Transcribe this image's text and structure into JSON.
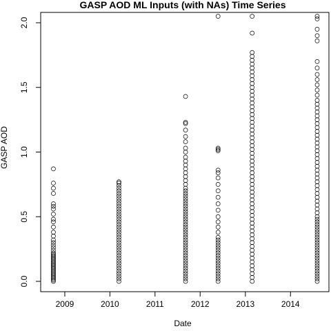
{
  "chart_data": {
    "type": "scatter",
    "title": "GASP AOD ML Inputs (with NAs) Time Series",
    "xlabel": "Date",
    "ylabel": "GASP AOD",
    "xlim": [
      "2008-06-20",
      "2014-11-08"
    ],
    "ylim": [
      -0.08,
      2.08
    ],
    "x_ticks": [
      "2009",
      "2010",
      "2011",
      "2012",
      "2013",
      "2014"
    ],
    "x_tick_dates": [
      "2009-01-01",
      "2010-01-01",
      "2011-01-01",
      "2012-01-01",
      "2013-01-01",
      "2014-01-01"
    ],
    "y_ticks": [
      "0.0",
      "0.5",
      "1.0",
      "1.5",
      "2.0"
    ],
    "y_tick_values": [
      0.0,
      0.5,
      1.0,
      1.5,
      2.0
    ],
    "grid": false,
    "marker": "open-circle",
    "series": [
      {
        "x": "2008-10-01",
        "values": [
          0.0,
          0.01,
          0.02,
          0.03,
          0.04,
          0.05,
          0.06,
          0.07,
          0.08,
          0.09,
          0.1,
          0.11,
          0.12,
          0.13,
          0.14,
          0.15,
          0.16,
          0.17,
          0.18,
          0.19,
          0.2,
          0.21,
          0.22,
          0.24,
          0.26,
          0.28,
          0.3,
          0.32,
          0.35,
          0.38,
          0.42,
          0.46,
          0.48,
          0.52,
          0.56,
          0.58,
          0.6,
          0.68,
          0.72,
          0.76,
          0.87
        ]
      },
      {
        "x": "2010-03-15",
        "values": [
          0.0,
          0.02,
          0.04,
          0.06,
          0.08,
          0.1,
          0.12,
          0.14,
          0.16,
          0.18,
          0.2,
          0.22,
          0.24,
          0.26,
          0.28,
          0.3,
          0.32,
          0.34,
          0.36,
          0.38,
          0.4,
          0.42,
          0.44,
          0.46,
          0.48,
          0.5,
          0.52,
          0.54,
          0.56,
          0.58,
          0.6,
          0.62,
          0.64,
          0.66,
          0.68,
          0.7,
          0.72,
          0.74,
          0.76,
          0.77
        ]
      },
      {
        "x": "2011-09-05",
        "values": [
          0.0,
          0.02,
          0.04,
          0.06,
          0.08,
          0.1,
          0.12,
          0.14,
          0.16,
          0.18,
          0.2,
          0.22,
          0.24,
          0.26,
          0.28,
          0.3,
          0.32,
          0.34,
          0.36,
          0.38,
          0.4,
          0.42,
          0.44,
          0.46,
          0.48,
          0.5,
          0.52,
          0.54,
          0.56,
          0.58,
          0.6,
          0.62,
          0.64,
          0.66,
          0.68,
          0.7,
          0.72,
          0.75,
          0.78,
          0.81,
          0.84,
          0.87,
          0.9,
          0.93,
          0.96,
          1.0,
          1.03,
          1.08,
          1.12,
          1.17,
          1.22,
          1.23,
          1.43
        ]
      },
      {
        "x": "2012-05-25",
        "values": [
          0.0,
          0.02,
          0.04,
          0.06,
          0.08,
          0.1,
          0.12,
          0.14,
          0.16,
          0.18,
          0.2,
          0.22,
          0.24,
          0.26,
          0.28,
          0.3,
          0.32,
          0.34,
          0.38,
          0.42,
          0.46,
          0.5,
          0.55,
          0.6,
          0.65,
          0.7,
          0.75,
          0.8,
          0.84,
          0.86,
          1.01,
          1.02,
          1.03,
          2.05
        ]
      },
      {
        "x": "2013-02-25",
        "values": [
          0.0,
          0.03,
          0.06,
          0.09,
          0.12,
          0.15,
          0.18,
          0.21,
          0.24,
          0.27,
          0.3,
          0.33,
          0.36,
          0.39,
          0.42,
          0.45,
          0.48,
          0.51,
          0.54,
          0.57,
          0.6,
          0.63,
          0.66,
          0.69,
          0.72,
          0.75,
          0.78,
          0.81,
          0.84,
          0.87,
          0.9,
          0.93,
          0.96,
          0.99,
          1.02,
          1.05,
          1.08,
          1.11,
          1.14,
          1.17,
          1.2,
          1.23,
          1.26,
          1.29,
          1.32,
          1.35,
          1.38,
          1.41,
          1.44,
          1.47,
          1.5,
          1.53,
          1.56,
          1.59,
          1.62,
          1.65,
          1.68,
          1.71,
          1.74,
          1.77,
          1.92,
          2.05
        ]
      },
      {
        "x": "2014-08-05",
        "values": [
          0.0,
          0.02,
          0.04,
          0.06,
          0.08,
          0.1,
          0.12,
          0.14,
          0.16,
          0.18,
          0.2,
          0.22,
          0.24,
          0.26,
          0.28,
          0.3,
          0.32,
          0.34,
          0.36,
          0.38,
          0.4,
          0.42,
          0.44,
          0.46,
          0.48,
          0.5,
          0.53,
          0.56,
          0.59,
          0.62,
          0.65,
          0.68,
          0.71,
          0.74,
          0.77,
          0.8,
          0.83,
          0.86,
          0.89,
          0.92,
          0.95,
          0.98,
          1.01,
          1.04,
          1.07,
          1.1,
          1.13,
          1.16,
          1.19,
          1.22,
          1.25,
          1.28,
          1.31,
          1.34,
          1.37,
          1.4,
          1.44,
          1.48,
          1.52,
          1.56,
          1.6,
          1.65,
          1.7,
          1.86,
          1.9,
          1.95,
          2.03,
          2.05
        ]
      }
    ]
  }
}
